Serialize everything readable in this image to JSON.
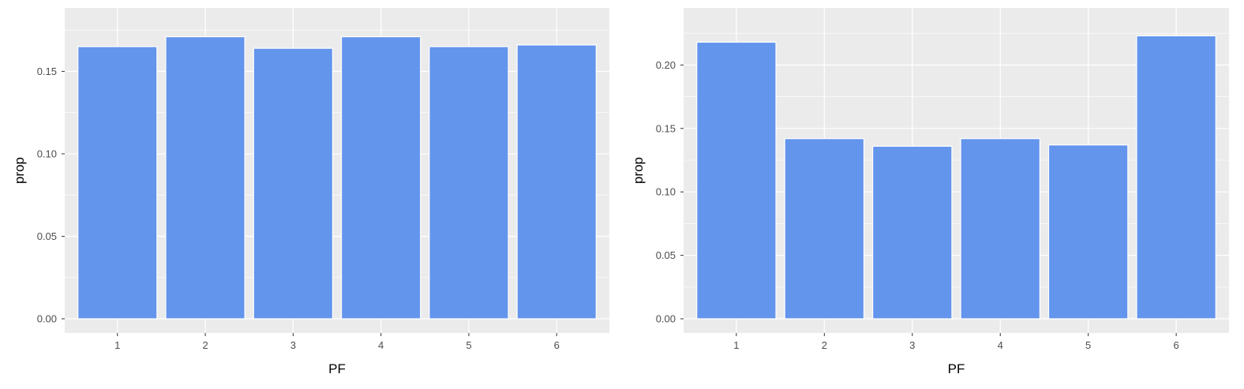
{
  "chart_data": [
    {
      "type": "bar",
      "categories": [
        "1",
        "2",
        "3",
        "4",
        "5",
        "6"
      ],
      "values": [
        0.165,
        0.171,
        0.164,
        0.171,
        0.165,
        0.166
      ],
      "xlabel": "PF",
      "ylabel": "prop",
      "ylim": [
        0,
        0.18
      ],
      "yticks": [
        0.0,
        0.05,
        0.1,
        0.15
      ],
      "ytick_labels": [
        "0.00",
        "0.05",
        "0.10",
        "0.15"
      ],
      "grid": true,
      "bar_color": "#6495ED",
      "panel_background": "#EBEBEB"
    },
    {
      "type": "bar",
      "categories": [
        "1",
        "2",
        "3",
        "4",
        "5",
        "6"
      ],
      "values": [
        0.218,
        0.142,
        0.136,
        0.142,
        0.137,
        0.223
      ],
      "xlabel": "PF",
      "ylabel": "prop",
      "ylim": [
        0,
        0.234
      ],
      "yticks": [
        0.0,
        0.05,
        0.1,
        0.15,
        0.2
      ],
      "ytick_labels": [
        "0.00",
        "0.05",
        "0.10",
        "0.15",
        "0.20"
      ],
      "grid": true,
      "bar_color": "#6495ED",
      "panel_background": "#EBEBEB"
    }
  ]
}
